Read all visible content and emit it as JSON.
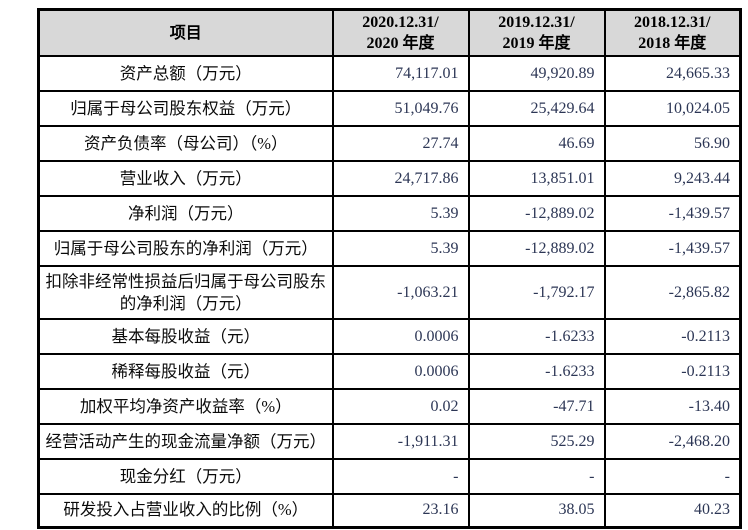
{
  "table": {
    "header": {
      "item_label": "项目",
      "columns": [
        {
          "line1": "2020.12.31/",
          "line2": "2020 年度"
        },
        {
          "line1": "2019.12.31/",
          "line2": "2019 年度"
        },
        {
          "line1": "2018.12.31/",
          "line2": "2018 年度"
        }
      ]
    },
    "rows": [
      {
        "label": "资产总额（万元）",
        "values": [
          "74,117.01",
          "49,920.89",
          "24,665.33"
        ]
      },
      {
        "label": "归属于母公司股东权益（万元）",
        "values": [
          "51,049.76",
          "25,429.64",
          "10,024.05"
        ]
      },
      {
        "label": "资产负债率（母公司）（%）",
        "values": [
          "27.74",
          "46.69",
          "56.90"
        ]
      },
      {
        "label": "营业收入（万元）",
        "values": [
          "24,717.86",
          "13,851.01",
          "9,243.44"
        ]
      },
      {
        "label": "净利润（万元）",
        "values": [
          "5.39",
          "-12,889.02",
          "-1,439.57"
        ]
      },
      {
        "label": "归属于母公司股东的净利润（万元）",
        "values": [
          "5.39",
          "-12,889.02",
          "-1,439.57"
        ]
      },
      {
        "label": "扣除非经常性损益后归属于母公司股东的净利润（万元）",
        "values": [
          "-1,063.21",
          "-1,792.17",
          "-2,865.82"
        ]
      },
      {
        "label": "基本每股收益（元）",
        "values": [
          "0.0006",
          "-1.6233",
          "-0.2113"
        ]
      },
      {
        "label": "稀释每股收益（元）",
        "values": [
          "0.0006",
          "-1.6233",
          "-0.2113"
        ]
      },
      {
        "label": "加权平均净资产收益率（%）",
        "values": [
          "0.02",
          "-47.71",
          "-13.40"
        ]
      },
      {
        "label": "经营活动产生的现金流量净额（万元）",
        "values": [
          "-1,911.31",
          "525.29",
          "-2,468.20"
        ]
      },
      {
        "label": "现金分红（万元）",
        "values": [
          "-",
          "-",
          "-"
        ]
      },
      {
        "label": "研发投入占营业收入的比例（%）",
        "values": [
          "23.16",
          "38.05",
          "40.23"
        ]
      }
    ]
  },
  "colors": {
    "header_bg": "#d8d8d8",
    "grid_border": "#000000",
    "number_text": "#2c3655",
    "label_text": "#0a0a0a"
  }
}
